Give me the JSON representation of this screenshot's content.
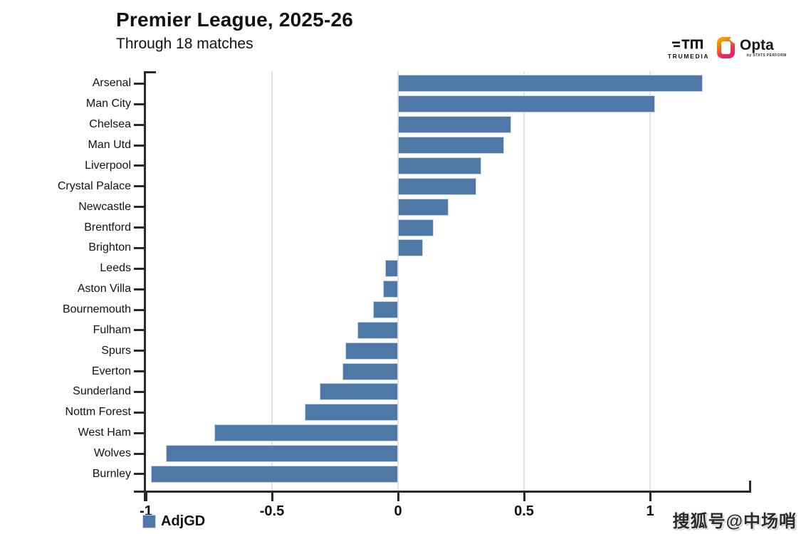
{
  "header": {
    "title": "Premier League, 2025-26",
    "subtitle": "Through 18 matches"
  },
  "branding": {
    "trumedia": {
      "label": "TRUMEDIA"
    },
    "opta": {
      "label": "Opta",
      "sublabel": "by STATS PERFORM"
    }
  },
  "legend": {
    "label": "AdjGD"
  },
  "watermark": {
    "text": "搜狐号@中场哨"
  },
  "colors": {
    "bar": "#4e79a7",
    "bar_border": "#c9d6e6",
    "axis": "#2a2a2a",
    "grid": "#e3e3e6",
    "opta_orange": "#f77f00",
    "opta_magenta": "#d61f8d"
  },
  "chart_data": {
    "type": "bar",
    "orientation": "horizontal",
    "title": "Premier League, 2025-26",
    "subtitle": "Through 18 matches",
    "series_name": "AdjGD",
    "categories": [
      "Arsenal",
      "Man City",
      "Chelsea",
      "Man Utd",
      "Liverpool",
      "Crystal Palace",
      "Newcastle",
      "Brentford",
      "Brighton",
      "Leeds",
      "Aston Villa",
      "Bournemouth",
      "Fulham",
      "Spurs",
      "Everton",
      "Sunderland",
      "Nottm Forest",
      "West Ham",
      "Wolves",
      "Burnley"
    ],
    "values": [
      1.21,
      1.02,
      0.45,
      0.42,
      0.33,
      0.31,
      0.2,
      0.14,
      0.1,
      -0.05,
      -0.06,
      -0.1,
      -0.16,
      -0.21,
      -0.22,
      -0.31,
      -0.37,
      -0.73,
      -0.92,
      -0.98
    ],
    "xlim": [
      -1,
      1.4
    ],
    "x_ticks": [
      {
        "v": -1,
        "label": "-1"
      },
      {
        "v": -0.5,
        "label": "-0.5"
      },
      {
        "v": 0,
        "label": "0"
      },
      {
        "v": 0.5,
        "label": "0.5"
      },
      {
        "v": 1,
        "label": "1"
      }
    ],
    "gridline_values": [
      -0.5,
      0,
      0.5,
      1
    ],
    "grid": true,
    "legend_position": "bottom-left"
  }
}
